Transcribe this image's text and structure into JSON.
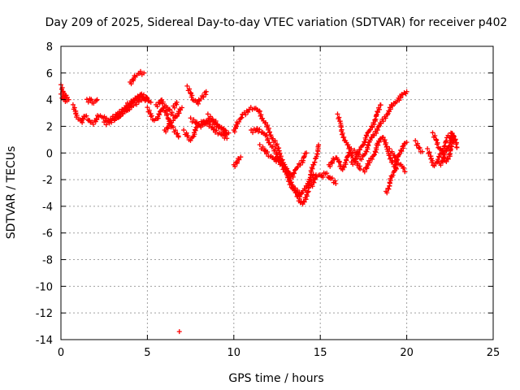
{
  "chart_data": {
    "type": "scatter",
    "title": "Day 209 of 2025, Sidereal Day-to-day VTEC variation (SDTVAR) for receiver p402",
    "xlabel": "GPS time / hours",
    "ylabel": "SDTVAR / TECUs",
    "xlim": [
      0,
      25
    ],
    "ylim": [
      -14,
      8
    ],
    "x_ticks": [
      0,
      5,
      10,
      15,
      20,
      25
    ],
    "y_ticks": [
      -14,
      -12,
      -10,
      -8,
      -6,
      -4,
      -2,
      0,
      2,
      4,
      6,
      8
    ],
    "grid": true,
    "marker": "+",
    "color": "#ff0000",
    "series": [
      {
        "name": "SDTVAR",
        "tracks": [
          {
            "x": [
              0.0,
              0.1,
              0.2,
              0.3,
              0.45
            ],
            "y": [
              5.0,
              4.6,
              4.4,
              4.2,
              4.0
            ]
          },
          {
            "x": [
              0.0,
              0.15,
              0.35
            ],
            "y": [
              4.3,
              4.1,
              3.9
            ]
          },
          {
            "x": [
              0.7,
              0.85,
              1.0,
              1.2,
              1.4,
              1.6,
              1.8,
              2.0,
              2.2,
              2.5,
              2.8,
              3.1,
              3.4,
              3.7,
              4.0,
              4.3,
              4.6,
              4.9,
              5.2
            ],
            "y": [
              3.5,
              3.0,
              2.6,
              2.3,
              2.8,
              2.5,
              2.2,
              2.4,
              2.8,
              2.6,
              2.4,
              2.8,
              3.0,
              3.4,
              3.8,
              4.0,
              4.2,
              4.1,
              3.8
            ]
          },
          {
            "x": [
              1.5,
              1.7,
              1.9,
              2.1
            ],
            "y": [
              3.9,
              4.0,
              3.8,
              4.0
            ]
          },
          {
            "x": [
              2.5,
              2.8,
              3.1,
              3.4,
              3.7,
              4.0,
              4.3,
              4.6,
              4.9
            ],
            "y": [
              2.2,
              2.3,
              2.5,
              2.8,
              3.2,
              3.6,
              4.0,
              4.4,
              4.2
            ]
          },
          {
            "x": [
              3.0,
              3.3,
              3.6,
              3.9,
              4.2,
              4.5,
              4.8,
              5.0
            ],
            "y": [
              2.6,
              2.7,
              3.0,
              3.3,
              3.6,
              3.9,
              4.0,
              4.1
            ]
          },
          {
            "x": [
              4.0,
              4.2,
              4.4,
              4.6,
              4.8
            ],
            "y": [
              5.2,
              5.6,
              5.9,
              6.0,
              6.0
            ]
          },
          {
            "x": [
              5.0,
              5.2,
              5.4,
              5.6,
              5.9,
              6.2,
              6.5,
              6.8
            ],
            "y": [
              3.3,
              2.8,
              2.5,
              2.6,
              3.4,
              2.6,
              1.8,
              1.2
            ]
          },
          {
            "x": [
              5.5,
              5.8,
              6.0,
              6.3,
              6.6
            ],
            "y": [
              3.5,
              4.0,
              3.6,
              3.1,
              2.8
            ]
          },
          {
            "x": [
              6.0,
              6.2,
              6.5,
              6.8,
              7.0
            ],
            "y": [
              1.6,
              2.0,
              2.5,
              3.0,
              3.4
            ]
          },
          {
            "x": [
              6.5,
              6.7
            ],
            "y": [
              3.4,
              3.8
            ]
          },
          {
            "x": [
              7.3,
              7.5,
              7.7,
              7.9,
              8.1,
              8.4
            ],
            "y": [
              4.9,
              4.5,
              4.0,
              3.7,
              4.1,
              4.6
            ]
          },
          {
            "x": [
              7.1,
              7.3,
              7.5,
              7.7,
              7.9,
              8.2,
              8.5,
              8.8,
              9.1,
              9.4,
              9.6
            ],
            "y": [
              1.6,
              1.3,
              1.0,
              1.4,
              2.0,
              2.4,
              2.2,
              1.8,
              1.5,
              1.3,
              1.1
            ]
          },
          {
            "x": [
              7.5,
              7.8,
              8.1,
              8.4,
              8.7,
              9.0,
              9.3,
              9.6
            ],
            "y": [
              2.5,
              2.3,
              2.0,
              2.3,
              2.5,
              2.2,
              1.8,
              1.4
            ]
          },
          {
            "x": [
              8.5,
              8.8,
              9.1,
              9.4,
              9.7
            ],
            "y": [
              2.8,
              2.4,
              2.0,
              1.7,
              1.5
            ]
          },
          {
            "x": [
              10.0,
              10.1,
              10.3,
              10.5
            ],
            "y": [
              1.6,
              1.9,
              2.4,
              2.9
            ]
          },
          {
            "x": [
              10.0,
              10.2,
              10.4
            ],
            "y": [
              -1.0,
              -0.6,
              -0.3
            ]
          },
          {
            "x": [
              10.6,
              10.9,
              11.2,
              11.5,
              11.8,
              12.1,
              12.4,
              12.6,
              12.9,
              13.2,
              13.5,
              13.8,
              14.1,
              14.4,
              14.7,
              14.9
            ],
            "y": [
              2.9,
              3.3,
              3.4,
              3.0,
              2.3,
              1.4,
              0.8,
              0.2,
              -0.8,
              -1.8,
              -2.6,
              -3.2,
              -2.8,
              -1.8,
              -0.6,
              0.6
            ]
          },
          {
            "x": [
              11.0,
              11.3,
              11.6,
              11.9,
              12.2,
              12.5,
              12.8,
              13.1,
              13.4,
              13.7,
              14.0,
              14.3,
              14.6
            ],
            "y": [
              1.6,
              1.8,
              1.6,
              1.2,
              0.5,
              -0.2,
              -1.0,
              -1.8,
              -2.6,
              -3.4,
              -3.8,
              -2.8,
              -1.6
            ]
          },
          {
            "x": [
              11.5,
              11.8,
              12.1,
              12.4,
              12.6
            ],
            "y": [
              0.5,
              0.2,
              -0.2,
              -0.6,
              -0.4
            ]
          },
          {
            "x": [
              12.5,
              12.8,
              13.1,
              13.4,
              13.7,
              14.0,
              14.2
            ],
            "y": [
              -0.4,
              -0.9,
              -1.4,
              -1.8,
              -1.0,
              -0.5,
              0.0
            ]
          },
          {
            "x": [
              14.5,
              14.7,
              14.9,
              15.1,
              15.3,
              15.5,
              15.7,
              15.9
            ],
            "y": [
              -2.5,
              -1.8,
              -1.6,
              -1.8,
              -1.5,
              -1.8,
              -2.0,
              -2.3
            ]
          },
          {
            "x": [
              15.5,
              15.7,
              15.9,
              16.1,
              16.3,
              16.5,
              16.8,
              17.1,
              17.4,
              17.7,
              18.0,
              18.3,
              18.6,
              18.9,
              19.2,
              19.5,
              19.8,
              20.0
            ],
            "y": [
              -1.0,
              -0.6,
              -0.3,
              -0.8,
              -1.2,
              -0.5,
              0.2,
              0.0,
              -0.4,
              0.3,
              1.2,
              1.8,
              2.4,
              3.0,
              3.6,
              4.0,
              4.4,
              4.6
            ]
          },
          {
            "x": [
              16.0,
              16.2,
              16.4,
              16.7,
              17.0,
              17.3
            ],
            "y": [
              2.8,
              2.0,
              1.0,
              0.2,
              -0.6,
              -1.2
            ]
          },
          {
            "x": [
              16.8,
              17.0,
              17.3,
              17.6,
              17.9,
              18.2,
              18.5
            ],
            "y": [
              -0.8,
              -0.6,
              0.3,
              1.0,
              1.8,
              2.6,
              3.6
            ]
          },
          {
            "x": [
              17.5,
              17.7,
              18.0,
              18.3,
              18.6,
              18.9,
              19.2,
              19.4
            ],
            "y": [
              -1.4,
              -1.0,
              -0.4,
              0.6,
              1.2,
              0.2,
              -0.8,
              -1.2
            ]
          },
          {
            "x": [
              18.8,
              19.0,
              19.2,
              19.4,
              19.6,
              19.8,
              20.0
            ],
            "y": [
              -3.0,
              -2.4,
              -1.6,
              -0.8,
              0.0,
              0.6,
              0.8
            ]
          },
          {
            "x": [
              19.0,
              19.3,
              19.6,
              19.9
            ],
            "y": [
              0.2,
              -0.3,
              -0.8,
              -1.4
            ]
          },
          {
            "x": [
              20.5,
              20.7,
              20.9
            ],
            "y": [
              0.8,
              0.4,
              0.1
            ]
          },
          {
            "x": [
              21.2,
              21.4,
              21.6,
              21.8,
              22.0,
              22.2,
              22.4,
              22.6,
              22.8
            ],
            "y": [
              0.2,
              -0.4,
              -0.9,
              -0.6,
              0.0,
              0.6,
              1.2,
              1.5,
              1.0
            ]
          },
          {
            "x": [
              21.5,
              21.7,
              21.9,
              22.1,
              22.3,
              22.5,
              22.7
            ],
            "y": [
              1.4,
              1.0,
              0.4,
              -0.2,
              -0.6,
              0.0,
              0.8
            ]
          },
          {
            "x": [
              21.9,
              22.1,
              22.3,
              22.5,
              22.7,
              22.9
            ],
            "y": [
              -0.9,
              -0.5,
              0.2,
              0.8,
              1.3,
              0.4
            ]
          },
          {
            "x": [
              6.85
            ],
            "y": [
              -13.4
            ]
          }
        ]
      }
    ]
  }
}
